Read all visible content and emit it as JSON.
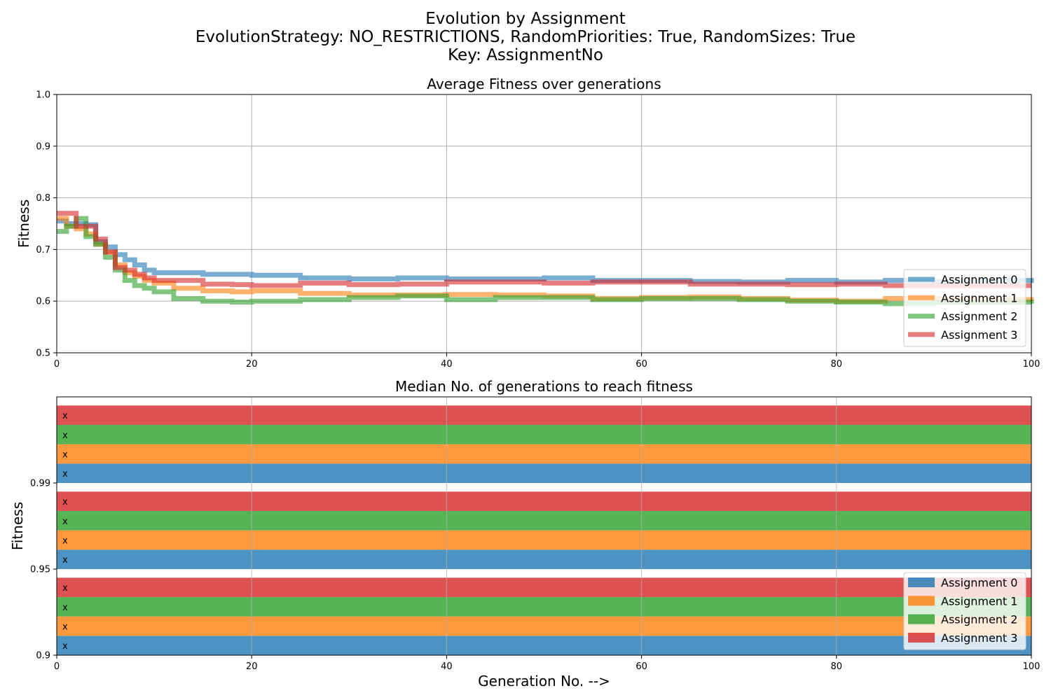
{
  "figure": {
    "title_lines": [
      "Evolution by Assignment",
      "EvolutionStrategy: NO_RESTRICTIONS, RandomPriorities: True, RandomSizes: True",
      "Key: AssignmentNo"
    ],
    "colors": {
      "Assignment 0": "#1f77b4",
      "Assignment 1": "#ff7f0e",
      "Assignment 2": "#2ca02c",
      "Assignment 3": "#d62728"
    }
  },
  "chart_data": [
    {
      "type": "line",
      "step": true,
      "title": "Average Fitness over generations",
      "xlabel": "",
      "ylabel": "Fitness",
      "xlim": [
        0,
        100
      ],
      "ylim": [
        0.5,
        1.0
      ],
      "xticks": [
        "0",
        "20",
        "40",
        "60",
        "80",
        "100"
      ],
      "yticks": [
        "0.5",
        "0.6",
        "0.7",
        "0.8",
        "0.9",
        "1.0"
      ],
      "grid": true,
      "legend": "lower-right",
      "x": [
        0,
        1,
        2,
        3,
        4,
        5,
        6,
        7,
        8,
        9,
        10,
        12,
        15,
        18,
        20,
        25,
        30,
        35,
        40,
        45,
        50,
        55,
        60,
        65,
        70,
        75,
        80,
        85,
        90,
        95,
        100
      ],
      "series": [
        {
          "name": "Assignment 0",
          "color": "#1f77b4",
          "values": [
            0.755,
            0.75,
            0.75,
            0.748,
            0.715,
            0.705,
            0.69,
            0.68,
            0.67,
            0.66,
            0.655,
            0.655,
            0.652,
            0.652,
            0.65,
            0.645,
            0.643,
            0.645,
            0.643,
            0.643,
            0.645,
            0.64,
            0.64,
            0.638,
            0.637,
            0.64,
            0.637,
            0.64,
            0.638,
            0.64,
            0.635
          ]
        },
        {
          "name": "Assignment 1",
          "color": "#ff7f0e",
          "values": [
            0.76,
            0.745,
            0.74,
            0.73,
            0.71,
            0.695,
            0.67,
            0.655,
            0.648,
            0.64,
            0.635,
            0.625,
            0.62,
            0.618,
            0.62,
            0.615,
            0.612,
            0.612,
            0.613,
            0.612,
            0.61,
            0.605,
            0.607,
            0.608,
            0.605,
            0.602,
            0.6,
            0.605,
            0.605,
            0.603,
            0.6
          ]
        },
        {
          "name": "Assignment 2",
          "color": "#2ca02c",
          "values": [
            0.735,
            0.745,
            0.76,
            0.725,
            0.71,
            0.685,
            0.66,
            0.64,
            0.63,
            0.625,
            0.618,
            0.605,
            0.6,
            0.598,
            0.6,
            0.603,
            0.607,
            0.61,
            0.603,
            0.607,
            0.607,
            0.603,
            0.605,
            0.605,
            0.603,
            0.6,
            0.598,
            0.595,
            0.598,
            0.598,
            0.595
          ]
        },
        {
          "name": "Assignment 3",
          "color": "#d62728",
          "values": [
            0.77,
            0.77,
            0.745,
            0.745,
            0.72,
            0.695,
            0.665,
            0.66,
            0.652,
            0.645,
            0.64,
            0.64,
            0.633,
            0.632,
            0.63,
            0.635,
            0.632,
            0.633,
            0.637,
            0.637,
            0.635,
            0.637,
            0.637,
            0.633,
            0.633,
            0.632,
            0.633,
            0.63,
            0.63,
            0.63,
            0.63
          ]
        }
      ]
    },
    {
      "type": "bar",
      "orientation": "horizontal",
      "title": "Median No. of generations to reach fitness",
      "xlabel": "Generation No. -->",
      "ylabel": "Fitness",
      "xlim": [
        0,
        100
      ],
      "xticks": [
        "0",
        "20",
        "40",
        "60",
        "80",
        "100"
      ],
      "categories": [
        "0.9",
        "0.95",
        "0.99"
      ],
      "grid": true,
      "legend": "lower-right",
      "marker": "x",
      "series": [
        {
          "name": "Assignment 0",
          "color": "#1f77b4",
          "values": [
            100,
            100,
            100
          ]
        },
        {
          "name": "Assignment 1",
          "color": "#ff7f0e",
          "values": [
            100,
            100,
            100
          ]
        },
        {
          "name": "Assignment 2",
          "color": "#2ca02c",
          "values": [
            100,
            100,
            100
          ]
        },
        {
          "name": "Assignment 3",
          "color": "#d62728",
          "values": [
            100,
            100,
            100
          ]
        }
      ]
    }
  ]
}
